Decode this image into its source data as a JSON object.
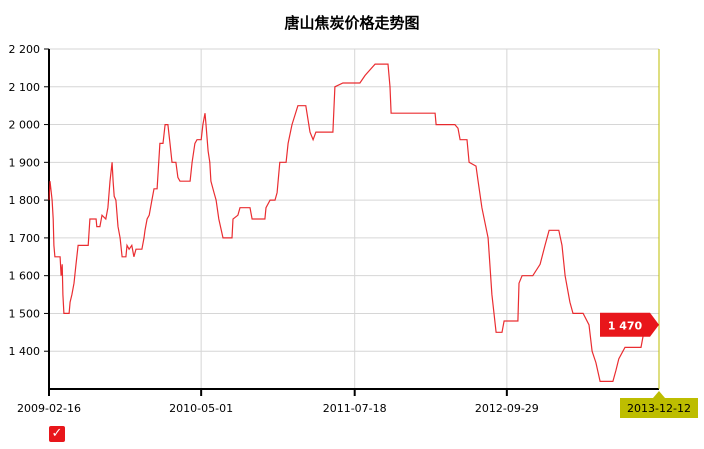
{
  "chart_data": {
    "type": "line",
    "title": "唐山焦炭价格走势图",
    "xlabel": "",
    "ylabel": "",
    "ylim": [
      1300,
      2200
    ],
    "xlim": [
      "2009-02-16",
      "2013-12-12"
    ],
    "y_ticks": [
      "1 400",
      "1 500",
      "1 600",
      "1 700",
      "1 800",
      "1 900",
      "2 000",
      "2 100",
      "2 200"
    ],
    "y_tick_values": [
      1400,
      1500,
      1600,
      1700,
      1800,
      1900,
      2000,
      2100,
      2200
    ],
    "x_ticks": [
      "2009-02-16",
      "2010-05-01",
      "2011-07-18",
      "2012-09-29"
    ],
    "grid": true,
    "line_color": "#e8161b",
    "crosshair_color": "#bdbd00",
    "tooltip": {
      "value": "1 470",
      "date": "2013-12-12"
    },
    "legend_checked": true,
    "series": [
      {
        "x": [
          "2009-02-16",
          "2009-02-19",
          "2009-02-25",
          "2009-02-28",
          "2009-03-02",
          "2009-03-05",
          "2009-03-20",
          "2009-03-23",
          "2009-03-26",
          "2009-03-28",
          "2009-03-31",
          "2009-04-15",
          "2009-04-18",
          "2009-04-23",
          "2009-04-29",
          "2009-05-05",
          "2009-05-11",
          "2009-06-09",
          "2009-06-14",
          "2009-07-02",
          "2009-07-04",
          "2009-07-13",
          "2009-07-19",
          "2009-07-30",
          "2009-08-05",
          "2009-08-11",
          "2009-08-17",
          "2009-08-20",
          "2009-08-23",
          "2009-08-28",
          "2009-09-03",
          "2009-09-09",
          "2009-09-15",
          "2009-09-26",
          "2009-09-29",
          "2009-10-05",
          "2009-10-13",
          "2009-10-19",
          "2009-10-25",
          "2009-11-11",
          "2009-11-17",
          "2009-11-20",
          "2009-11-26",
          "2009-12-02",
          "2009-12-10",
          "2009-12-16",
          "2009-12-25",
          "2010-01-02",
          "2010-01-11",
          "2010-01-17",
          "2010-01-25",
          "2010-01-31",
          "2010-02-06",
          "2010-02-17",
          "2010-02-23",
          "2010-03-01",
          "2010-03-30",
          "2010-04-05",
          "2010-04-13",
          "2010-04-19",
          "2010-05-01",
          "2010-05-06",
          "2010-05-12",
          "2010-05-15",
          "2010-05-21",
          "2010-05-26",
          "2010-05-29",
          "2010-06-07",
          "2010-06-13",
          "2010-06-21",
          "2010-07-03",
          "2010-07-29",
          "2010-08-01",
          "2010-08-15",
          "2010-08-21",
          "2010-09-19",
          "2010-09-25",
          "2010-11-01",
          "2010-11-04",
          "2010-11-16",
          "2010-11-30",
          "2010-12-06",
          "2010-12-14",
          "2011-01-01",
          "2011-01-07",
          "2011-01-18",
          "2011-02-04",
          "2011-02-27",
          "2011-03-11",
          "2011-03-20",
          "2011-03-28",
          "2011-05-16",
          "2011-05-22",
          "2011-06-14",
          "2011-08-02",
          "2011-08-17",
          "2011-09-15",
          "2011-10-22",
          "2011-10-28",
          "2011-10-31",
          "2012-03-06",
          "2012-03-09",
          "2012-05-02",
          "2012-05-11",
          "2012-05-17",
          "2012-06-06",
          "2012-06-12",
          "2012-07-02",
          "2012-07-08",
          "2012-07-19",
          "2012-08-06",
          "2012-08-17",
          "2012-08-29",
          "2012-09-15",
          "2012-09-21",
          "2012-10-31",
          "2012-11-03",
          "2012-11-12",
          "2012-12-13",
          "2013-01-03",
          "2013-01-17",
          "2013-01-29",
          "2013-02-26",
          "2013-03-07",
          "2013-03-16",
          "2013-03-30",
          "2013-04-08",
          "2013-05-07",
          "2013-05-24",
          "2013-06-02",
          "2013-06-13",
          "2013-06-25",
          "2013-08-01",
          "2013-08-10",
          "2013-08-18",
          "2013-09-05",
          "2013-10-21",
          "2013-10-27",
          "2013-11-30",
          "2013-12-12"
        ],
        "y": [
          1800,
          1850,
          1800,
          1750,
          1680,
          1650,
          1650,
          1600,
          1630,
          1550,
          1500,
          1500,
          1530,
          1550,
          1580,
          1630,
          1680,
          1680,
          1750,
          1750,
          1730,
          1730,
          1760,
          1750,
          1780,
          1850,
          1900,
          1850,
          1810,
          1800,
          1730,
          1700,
          1650,
          1650,
          1680,
          1670,
          1680,
          1650,
          1670,
          1670,
          1700,
          1720,
          1750,
          1760,
          1800,
          1830,
          1830,
          1950,
          1950,
          2000,
          2000,
          1950,
          1900,
          1900,
          1860,
          1850,
          1850,
          1900,
          1950,
          1960,
          1960,
          2000,
          2030,
          2000,
          1930,
          1900,
          1850,
          1820,
          1800,
          1750,
          1700,
          1700,
          1750,
          1760,
          1780,
          1780,
          1750,
          1750,
          1780,
          1800,
          1800,
          1820,
          1900,
          1900,
          1950,
          2000,
          2050,
          2050,
          1980,
          1960,
          1980,
          1980,
          2100,
          2110,
          2110,
          2130,
          2160,
          2160,
          2100,
          2030,
          2030,
          2000,
          2000,
          1990,
          1960,
          1960,
          1900,
          1890,
          1850,
          1780,
          1700,
          1550,
          1450,
          1450,
          1480,
          1480,
          1580,
          1600,
          1600,
          1630,
          1680,
          1720,
          1720,
          1680,
          1600,
          1530,
          1500,
          1500,
          1470,
          1400,
          1370,
          1320,
          1320,
          1350,
          1380,
          1410,
          1410,
          1440,
          1470,
          1470
        ]
      }
    ]
  }
}
